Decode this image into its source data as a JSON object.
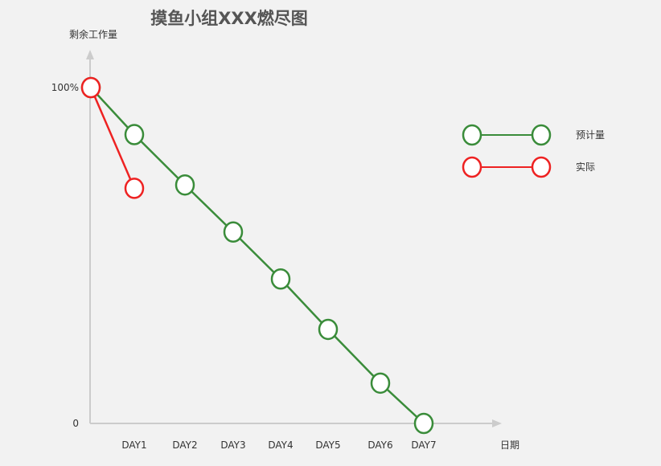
{
  "chart_data": {
    "type": "line",
    "title": "摸鱼小组XXX燃尽图",
    "ylabel": "剩余工作量",
    "xlabel": "日期",
    "x": [
      "",
      "DAY1",
      "DAY2",
      "DAY3",
      "DAY4",
      "DAY5",
      "DAY6",
      "DAY7"
    ],
    "y_ticks": [
      "100%",
      "0"
    ],
    "ylim": [
      0,
      100
    ],
    "series": [
      {
        "name": "预计量",
        "color": "#3a8c3a",
        "values": [
          100,
          86,
          71,
          57,
          43,
          28,
          12,
          0
        ]
      },
      {
        "name": "实际",
        "color": "#ee2222",
        "values": [
          100,
          70,
          null,
          null,
          null,
          null,
          null,
          null
        ]
      }
    ],
    "legend": "right",
    "grid": false
  }
}
